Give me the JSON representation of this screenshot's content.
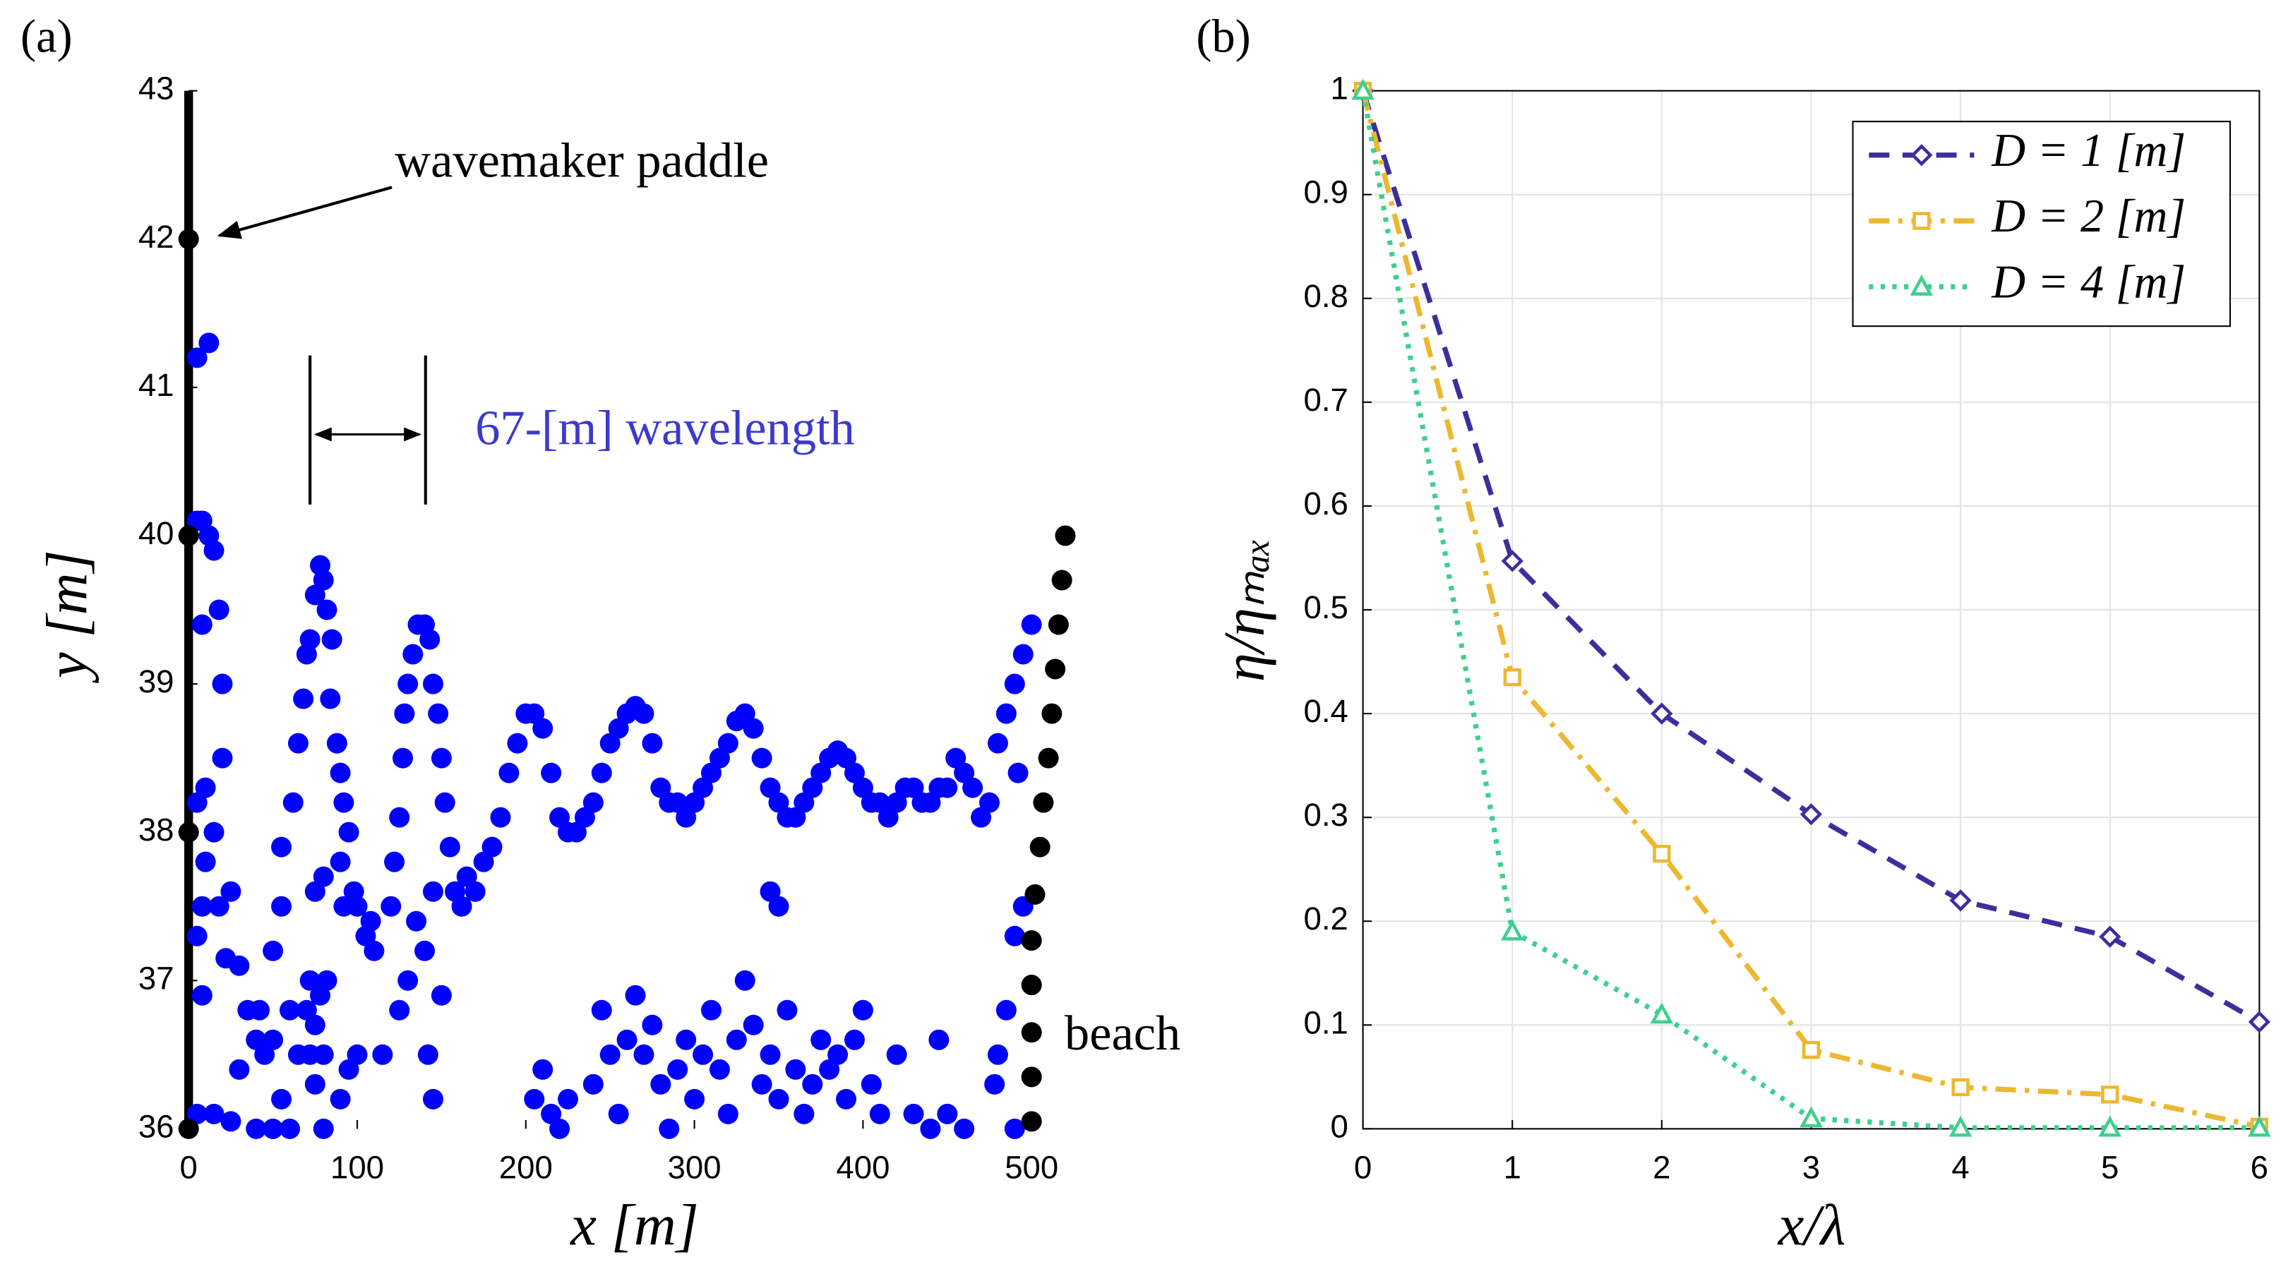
{
  "chart_data": [
    {
      "type": "scatter",
      "title": "(a)",
      "xlabel": "x [m]",
      "ylabel": "y [m]",
      "xlim": [
        0,
        530
      ],
      "ylim": [
        36,
        43
      ],
      "xticks": [
        0,
        100,
        200,
        300,
        400,
        500
      ],
      "yticks": [
        36,
        37,
        38,
        39,
        40,
        41,
        42,
        43
      ],
      "annotations": [
        "wavemaker paddle",
        "67-[m] wavelength",
        "beach"
      ],
      "series": [
        {
          "color": "#0000ff",
          "x": [
            5,
            12,
            5,
            8,
            12,
            15,
            18,
            8,
            20,
            10,
            5,
            15,
            20,
            10,
            8,
            5,
            18,
            25,
            8,
            5,
            15,
            25,
            22,
            30,
            35,
            40,
            45,
            42,
            50,
            30,
            40,
            50,
            55,
            60,
            65,
            60,
            55,
            50,
            55,
            62,
            65,
            68,
            70,
            72,
            75,
            78,
            80,
            82,
            85,
            84,
            88,
            90,
            92,
            95,
            90,
            92,
            98,
            100,
            105,
            108,
            110,
            100,
            95,
            90,
            80,
            75,
            72,
            70,
            72,
            75,
            80,
            78,
            80,
            75,
            82,
            120,
            122,
            125,
            127,
            128,
            130,
            133,
            136,
            140,
            143,
            145,
            148,
            150,
            152,
            155,
            158,
            162,
            165,
            170,
            175,
            180,
            185,
            190,
            195,
            200,
            205,
            210,
            215,
            220,
            225,
            230,
            235,
            240,
            245,
            250,
            255,
            260,
            265,
            270,
            275,
            280,
            285,
            290,
            295,
            300,
            305,
            310,
            315,
            320,
            325,
            330,
            335,
            340,
            345,
            350,
            355,
            360,
            365,
            370,
            375,
            380,
            385,
            390,
            395,
            400,
            405,
            410,
            415,
            420,
            425,
            430,
            435,
            440,
            445,
            450,
            455,
            460,
            465,
            470,
            475,
            480,
            485,
            490,
            495,
            500,
            492,
            495,
            490,
            485,
            480,
            490,
            478,
            205,
            210,
            215,
            220,
            225,
            240,
            245,
            250,
            255,
            260,
            265,
            270,
            275,
            280,
            285,
            290,
            295,
            300,
            305,
            310,
            315,
            320,
            325,
            330,
            335,
            340,
            345,
            350,
            355,
            360,
            365,
            370,
            375,
            380,
            385,
            390,
            395,
            400,
            405,
            410,
            420,
            430,
            440,
            445,
            450,
            460,
            345,
            350,
            140,
            135,
            130,
            125,
            142,
            145,
            150,
            115,
            145
          ],
          "y": [
            41.2,
            41.3,
            40.1,
            40.1,
            40,
            39.9,
            39.5,
            39.4,
            39,
            38.3,
            38.2,
            38,
            38.5,
            37.8,
            37.5,
            37.3,
            37.5,
            37.6,
            36.9,
            36.1,
            36.1,
            36.05,
            37.15,
            37.1,
            36.8,
            36.6,
            36.5,
            36.8,
            36.6,
            36.4,
            36,
            36,
            36.2,
            36,
            36.5,
            36.8,
            37.5,
            37.2,
            37.9,
            38.2,
            38.6,
            38.9,
            39.2,
            39.3,
            39.6,
            39.8,
            39.7,
            39.5,
            39.3,
            38.9,
            38.6,
            38.4,
            38.2,
            38,
            37.8,
            37.5,
            37.6,
            37.5,
            37.3,
            37.4,
            37.2,
            36.5,
            36.4,
            36.2,
            36.5,
            36.7,
            37,
            36.8,
            36.5,
            36.3,
            36,
            36.9,
            37.7,
            37.6,
            37,
            37.5,
            37.8,
            38.1,
            38.5,
            38.8,
            39,
            39.2,
            39.4,
            39.4,
            39.3,
            39,
            38.8,
            38.5,
            38.2,
            37.9,
            37.6,
            37.5,
            37.7,
            37.6,
            37.8,
            37.9,
            38.1,
            38.4,
            38.6,
            38.8,
            38.8,
            38.7,
            38.4,
            38.1,
            38,
            38,
            38.1,
            38.2,
            38.4,
            38.6,
            38.7,
            38.8,
            38.85,
            38.8,
            38.6,
            38.3,
            38.2,
            38.2,
            38.1,
            38.2,
            38.3,
            38.4,
            38.5,
            38.6,
            38.75,
            38.8,
            38.7,
            38.5,
            38.3,
            38.2,
            38.1,
            38.1,
            38.2,
            38.3,
            38.4,
            38.5,
            38.55,
            38.5,
            38.4,
            38.3,
            38.2,
            38.2,
            38.1,
            38.2,
            38.3,
            38.3,
            38.2,
            38.2,
            38.3,
            38.3,
            38.5,
            38.4,
            38.3,
            38.1,
            38.2,
            38.6,
            38.8,
            39,
            39.2,
            39.4,
            38.4,
            37.5,
            37.3,
            36.8,
            36.5,
            36,
            36.3,
            36.2,
            36.4,
            36.1,
            36,
            36.2,
            36.3,
            36.8,
            36.5,
            36.1,
            36.6,
            36.9,
            36.5,
            36.7,
            36.3,
            36,
            36.4,
            36.6,
            36.2,
            36.5,
            36.8,
            36.4,
            36.1,
            36.6,
            37,
            36.7,
            36.3,
            36.5,
            36.2,
            36.8,
            36.4,
            36.1,
            36.3,
            36.6,
            36.4,
            36.5,
            36.2,
            36.6,
            36.8,
            36.3,
            36.1,
            36.5,
            36.1,
            36,
            36.6,
            36.1,
            36,
            37.6,
            37.5,
            37.2,
            37.4,
            37,
            36.8,
            36.5,
            36.2,
            36.9,
            36.5,
            37.6
          ]
        },
        {
          "color": "#000000",
          "x": [
            0,
            0,
            0,
            0,
            500,
            500,
            500,
            500,
            500,
            502,
            505,
            507,
            510,
            512,
            514,
            516,
            518,
            520
          ],
          "y": [
            36,
            38,
            40,
            42,
            36.05,
            36.35,
            36.65,
            36.97,
            37.27,
            37.58,
            37.9,
            38.2,
            38.5,
            38.8,
            39.1,
            39.4,
            39.7,
            40
          ]
        }
      ]
    },
    {
      "type": "line",
      "title": "(b)",
      "xlabel": "x/λ",
      "ylabel": "η/ηₘₐₓ",
      "xlim": [
        0,
        6
      ],
      "ylim": [
        0,
        1
      ],
      "xticks": [
        0,
        1,
        2,
        3,
        4,
        5,
        6
      ],
      "yticks": [
        0,
        0.1,
        0.2,
        0.3,
        0.4,
        0.5,
        0.6,
        0.7,
        0.8,
        0.9,
        1
      ],
      "grid": true,
      "legend": "upper right",
      "x": [
        0,
        1,
        2,
        3,
        4,
        5,
        6
      ],
      "series": [
        {
          "name": "D = 1 [m]",
          "color": "#3b2f9e",
          "linestyle": "dashed",
          "marker": "diamond",
          "values": [
            1,
            0.547,
            0.4,
            0.303,
            0.22,
            0.185,
            0.103
          ]
        },
        {
          "name": "D = 2 [m]",
          "color": "#edb72f",
          "linestyle": "dashdot",
          "marker": "square",
          "values": [
            1,
            0.435,
            0.265,
            0.076,
            0.04,
            0.033,
            0.002
          ]
        },
        {
          "name": "D = 4 [m]",
          "color": "#3fcf8e",
          "linestyle": "dotted",
          "marker": "triangle",
          "values": [
            1,
            0.19,
            0.11,
            0.01,
            0.001,
            0.001,
            0.001
          ]
        }
      ]
    }
  ]
}
